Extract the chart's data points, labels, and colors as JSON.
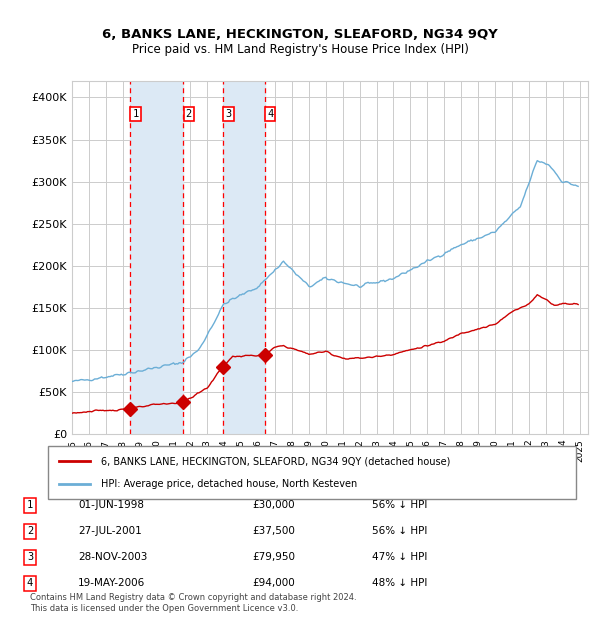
{
  "title": "6, BANKS LANE, HECKINGTON, SLEAFORD, NG34 9QY",
  "subtitle": "Price paid vs. HM Land Registry's House Price Index (HPI)",
  "footer": "Contains HM Land Registry data © Crown copyright and database right 2024.\nThis data is licensed under the Open Government Licence v3.0.",
  "legend_red": "6, BANKS LANE, HECKINGTON, SLEAFORD, NG34 9QY (detached house)",
  "legend_blue": "HPI: Average price, detached house, North Kesteven",
  "sales": [
    {
      "num": 1,
      "date": "01-JUN-1998",
      "price": 30000,
      "pct": "56% ↓ HPI",
      "year": 1998.42
    },
    {
      "num": 2,
      "date": "27-JUL-2001",
      "price": 37500,
      "pct": "56% ↓ HPI",
      "year": 2001.57
    },
    {
      "num": 3,
      "date": "28-NOV-2003",
      "price": 79950,
      "pct": "47% ↓ HPI",
      "year": 2003.91
    },
    {
      "num": 4,
      "date": "19-MAY-2006",
      "price": 94000,
      "pct": "48% ↓ HPI",
      "year": 2006.38
    }
  ],
  "hpi_color": "#6baed6",
  "price_color": "#cc0000",
  "marker_color": "#cc0000",
  "background_color": "#ffffff",
  "grid_color": "#cccccc",
  "shade_color": "#dce9f5",
  "ylim": [
    0,
    420000
  ],
  "xlim_start": 1995.0,
  "xlim_end": 2025.5
}
